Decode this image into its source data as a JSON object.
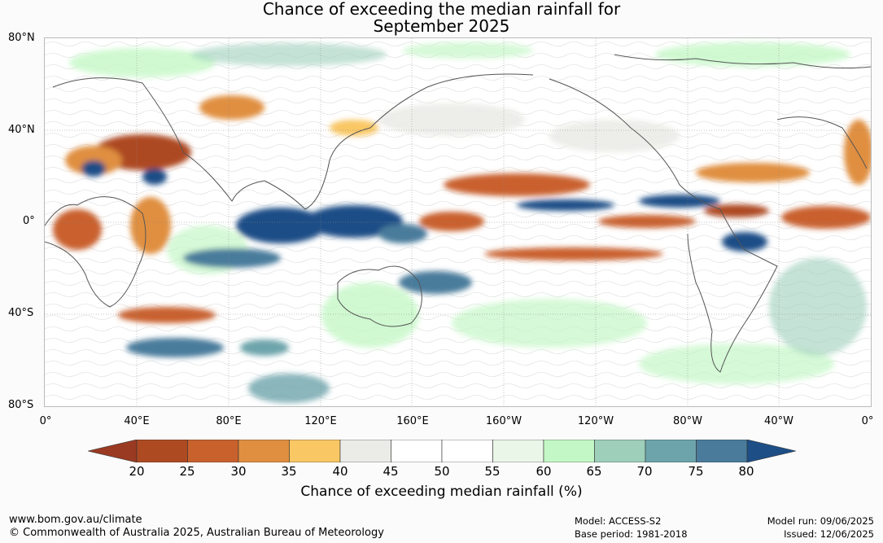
{
  "title": {
    "line1": "Chance of exceeding the median rainfall for",
    "line2": "September 2025"
  },
  "map": {
    "lat_labels": [
      "80°N",
      "40°N",
      "0°",
      "40°S",
      "80°S"
    ],
    "lon_labels": [
      "0°",
      "40°E",
      "80°E",
      "120°E",
      "160°E",
      "160°W",
      "120°W",
      "80°W",
      "40°W",
      "0°"
    ]
  },
  "legend": {
    "ticks": [
      "20",
      "25",
      "30",
      "35",
      "40",
      "45",
      "50",
      "55",
      "60",
      "65",
      "70",
      "75",
      "80"
    ],
    "colors": [
      "#ad4a22",
      "#c9612d",
      "#e08f41",
      "#f9c763",
      "#ebebe7",
      "#ffffff",
      "#ffffff",
      "#eaf6e8",
      "#c4f7c6",
      "#9dcfba",
      "#6da4ab",
      "#4a7b9b"
    ],
    "under_color": "#9a3a22",
    "over_color": "#1d4e86",
    "label": "Chance of exceeding median rainfall (%)"
  },
  "footer": {
    "website": "www.bom.gov.au/climate",
    "copyright": "© Commonwealth of Australia 2025, Australian Bureau of Meteorology",
    "model": "Model: ACCESS-S2",
    "base_period": "Base period: 1981-2018",
    "model_run": "Model run: 09/06/2025",
    "issued": "Issued: 12/06/2025"
  }
}
